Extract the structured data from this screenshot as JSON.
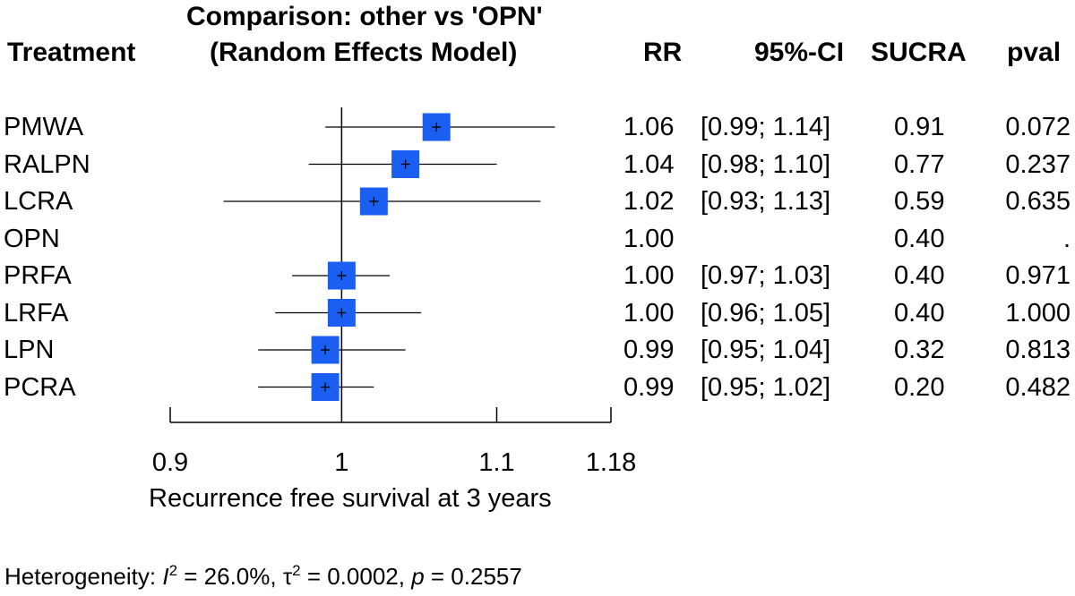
{
  "header": {
    "treatment": "Treatment",
    "comparison_line1": "Comparison: other vs 'OPN'",
    "comparison_line2": "(Random Effects Model)",
    "rr": "RR",
    "ci": "95%-CI",
    "sucra": "SUCRA",
    "pval": "pval"
  },
  "rows": [
    {
      "treatment": "PMWA",
      "rr": "1.06",
      "ci": "[0.99; 1.14]",
      "sucra": "0.91",
      "pval": "0.072"
    },
    {
      "treatment": "RALPN",
      "rr": "1.04",
      "ci": "[0.98; 1.10]",
      "sucra": "0.77",
      "pval": "0.237"
    },
    {
      "treatment": "LCRA",
      "rr": "1.02",
      "ci": "[0.93; 1.13]",
      "sucra": "0.59",
      "pval": "0.635"
    },
    {
      "treatment": "OPN",
      "rr": "1.00",
      "ci": "",
      "sucra": "0.40",
      "pval": "."
    },
    {
      "treatment": "PRFA",
      "rr": "1.00",
      "ci": "[0.97; 1.03]",
      "sucra": "0.40",
      "pval": "0.971"
    },
    {
      "treatment": "LRFA",
      "rr": "1.00",
      "ci": "[0.96; 1.05]",
      "sucra": "0.40",
      "pval": "1.000"
    },
    {
      "treatment": "LPN",
      "rr": "0.99",
      "ci": "[0.95; 1.04]",
      "sucra": "0.32",
      "pval": "0.813"
    },
    {
      "treatment": "PCRA",
      "rr": "0.99",
      "ci": "[0.95; 1.02]",
      "sucra": "0.20",
      "pval": "0.482"
    }
  ],
  "axis": {
    "xlabel": "Recurrence free survival at 3 years",
    "ticks": [
      "0.9",
      "1",
      "1.1",
      "1.18"
    ]
  },
  "footer": {
    "prefix": "Heterogeneity: ",
    "i_symbol": "I",
    "i_sup": "2",
    "i_value": " = 26.0%, ",
    "tau_symbol": "τ",
    "tau_sup": "2",
    "tau_value": " = 0.0002, ",
    "p_symbol": "p",
    "p_value": " = 0.2557"
  },
  "chart_data": {
    "type": "forest",
    "title": "Comparison: other vs 'OPN'",
    "subtitle": "(Random Effects Model)",
    "xlabel": "Recurrence free survival at 3 years",
    "xscale": "log",
    "xlim": [
      0.9,
      1.18
    ],
    "ticks": [
      0.9,
      1,
      1.1,
      1.18
    ],
    "reference_line": 1,
    "box_color": "#1a5ff2",
    "categories": [
      "PMWA",
      "RALPN",
      "LCRA",
      "OPN",
      "PRFA",
      "LRFA",
      "LPN",
      "PCRA"
    ],
    "estimates": [
      1.06,
      1.04,
      1.02,
      1.0,
      1.0,
      1.0,
      0.99,
      0.99
    ],
    "ci_lower": [
      0.99,
      0.98,
      0.93,
      null,
      0.97,
      0.96,
      0.95,
      0.95
    ],
    "ci_upper": [
      1.14,
      1.1,
      1.13,
      null,
      1.03,
      1.05,
      1.04,
      1.02
    ]
  }
}
